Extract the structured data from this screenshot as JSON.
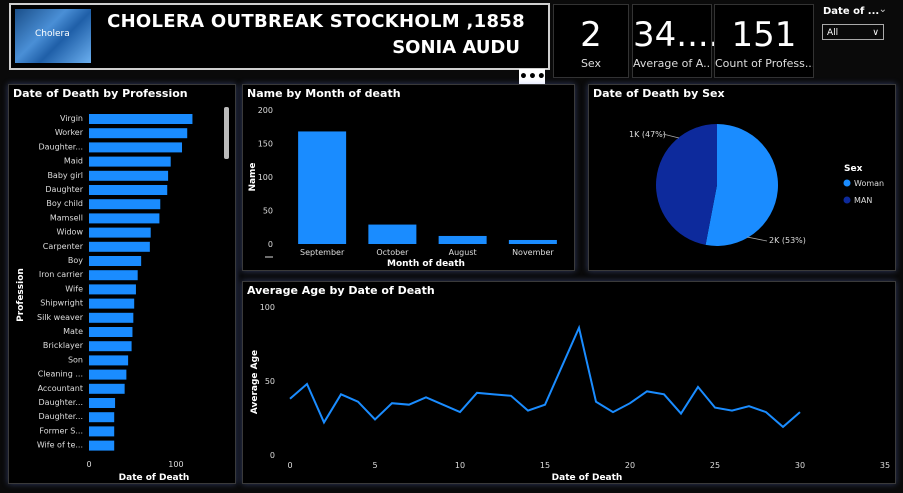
{
  "banner": {
    "logo_text": "Cholera",
    "title": "CHOLERA OUTBREAK STOCKHOLM ,1858",
    "author": "SONIA AUDU"
  },
  "cards": [
    {
      "value": "2",
      "label": "Sex"
    },
    {
      "value": "34....",
      "label": "Average of  A..."
    },
    {
      "value": "151",
      "label": "Count of  Profess..."
    }
  ],
  "slicer": {
    "title": "Date of ...",
    "selected": "All"
  },
  "more_button": "•••",
  "colors": {
    "bar": "#1a8cff",
    "woman": "#1a8cff",
    "man": "#0d2a9c",
    "line": "#1a8cff"
  },
  "chart_data": [
    {
      "type": "bar",
      "orientation": "horizontal",
      "title": "Date of Death by Profession",
      "xlabel": "Date of Death",
      "ylabel": "Profession",
      "xticks": [
        "0",
        "100"
      ],
      "xlim": [
        0,
        130
      ],
      "categories": [
        "Virgin",
        "Worker",
        "Daughter...",
        "Maid",
        "Baby girl",
        "Daughter",
        "Boy child",
        "Mamsell",
        "Widow",
        "Carpenter",
        "Boy",
        "Iron carrier",
        "Wife",
        "Shipwright",
        "Silk weaver",
        "Mate",
        "Bricklayer",
        "Son",
        "Cleaning ...",
        "Accountant",
        "Daughter...",
        "Daughter...",
        "Former S...",
        "Wife of te..."
      ],
      "values": [
        119,
        113,
        107,
        94,
        91,
        90,
        82,
        81,
        71,
        70,
        60,
        56,
        54,
        52,
        51,
        50,
        49,
        45,
        43,
        41,
        30,
        29,
        29,
        29
      ]
    },
    {
      "type": "bar",
      "title": "Name by Month of death",
      "xlabel": "Month of death",
      "ylabel": "Name",
      "yticks": [
        "0",
        "50",
        "100",
        "150",
        "200"
      ],
      "ylim": [
        0,
        200
      ],
      "categories": [
        "September",
        "October",
        "August",
        "November"
      ],
      "values": [
        168,
        29,
        12,
        6
      ]
    },
    {
      "type": "pie",
      "title": "Date of Death by Sex",
      "legend_title": "Sex",
      "labels": [
        "Woman",
        "MAN"
      ],
      "values": [
        53,
        47
      ],
      "data_labels": [
        "2K (53%)",
        "1K (47%)"
      ]
    },
    {
      "type": "line",
      "title": "Average Age by Date of Death",
      "xlabel": "Date of Death",
      "ylabel": "Average Age",
      "xticks": [
        "0",
        "5",
        "10",
        "15",
        "20",
        "25",
        "30",
        "35"
      ],
      "yticks": [
        "0",
        "50",
        "100"
      ],
      "xlim": [
        0,
        35
      ],
      "ylim": [
        0,
        100
      ],
      "x": [
        0,
        1,
        2,
        3,
        4,
        5,
        6,
        7,
        8,
        9,
        10,
        11,
        12,
        13,
        14,
        15,
        16,
        17,
        18,
        19,
        20,
        21,
        22,
        23,
        24,
        25,
        26,
        27,
        28,
        29,
        30,
        31
      ],
      "y": [
        38,
        48,
        22,
        41,
        36,
        24,
        35,
        34,
        39,
        34,
        29,
        42,
        41,
        40,
        30,
        34,
        60,
        86,
        36,
        29,
        35,
        43,
        41,
        28,
        46,
        32,
        30,
        33,
        29,
        19,
        29,
        null
      ]
    }
  ]
}
